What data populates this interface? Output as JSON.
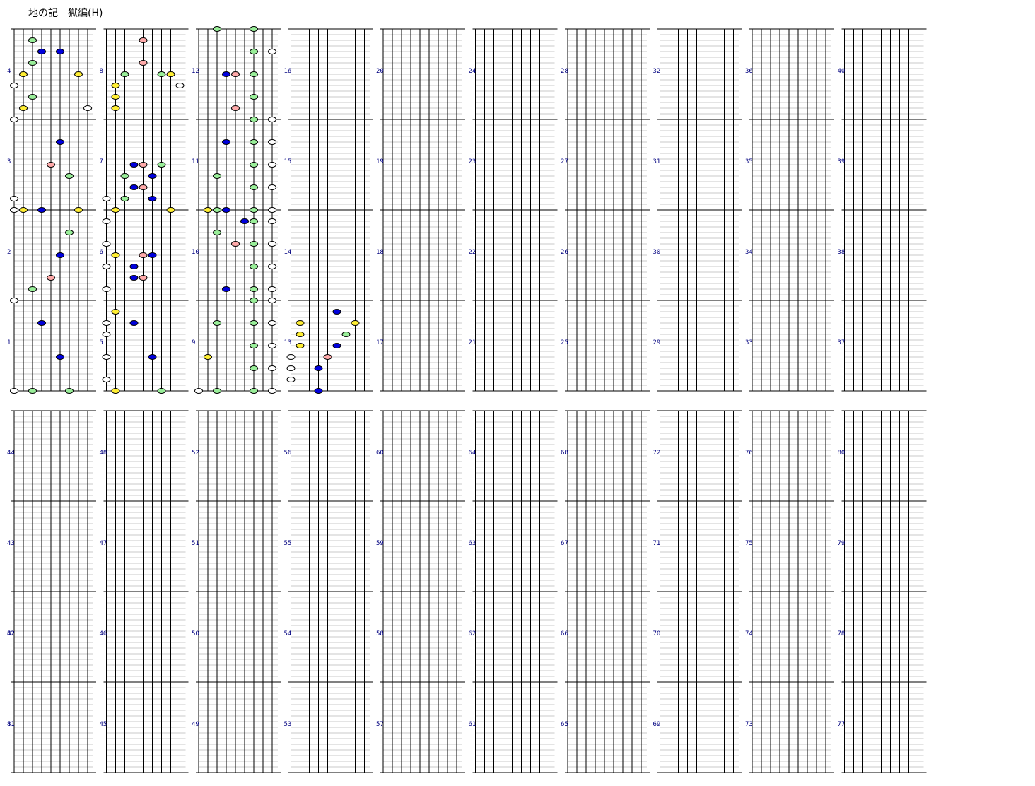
{
  "title": "地の記　獄編(H)",
  "chart_data": {
    "type": "rhythm-game-chart",
    "lanes": 9,
    "rows_per_measure": 16,
    "measures_per_column": 4,
    "total_measures": 82,
    "colors": {
      "white": "#ffffff",
      "yellow": "#ffee33",
      "green": "#99ee99",
      "blue": "#0000dd",
      "pink": "#ffaaaa"
    },
    "lane_colors": [
      "white",
      "yellow",
      "green",
      "blue",
      "pink",
      "blue",
      "green",
      "yellow",
      "white"
    ],
    "notes": {
      "1": [
        [
          0,
          0
        ],
        [
          2,
          0
        ],
        [
          3,
          6
        ],
        [
          5,
          3
        ],
        [
          6,
          0
        ]
      ],
      "2": [
        [
          0,
          0
        ],
        [
          2,
          1
        ],
        [
          3,
          8
        ],
        [
          4,
          2
        ],
        [
          5,
          4
        ],
        [
          6,
          6
        ]
      ],
      "3": [
        [
          0,
          0
        ],
        [
          0,
          1
        ],
        [
          1,
          0
        ],
        [
          4,
          4
        ],
        [
          5,
          6
        ],
        [
          6,
          3
        ],
        [
          7,
          0
        ]
      ],
      "4": [
        [
          0,
          0
        ],
        [
          0,
          3
        ],
        [
          1,
          1
        ],
        [
          1,
          4
        ],
        [
          2,
          2
        ],
        [
          2,
          5
        ],
        [
          2,
          7
        ],
        [
          3,
          6
        ],
        [
          5,
          6
        ],
        [
          7,
          4
        ],
        [
          8,
          1
        ]
      ],
      "5": [
        [
          0,
          1
        ],
        [
          0,
          3
        ],
        [
          0,
          5
        ],
        [
          0,
          6
        ],
        [
          1,
          0
        ],
        [
          1,
          7
        ],
        [
          3,
          6
        ],
        [
          5,
          3
        ],
        [
          6,
          0
        ]
      ],
      "6": [
        [
          0,
          1
        ],
        [
          0,
          3
        ],
        [
          0,
          5
        ],
        [
          0,
          7
        ],
        [
          1,
          4
        ],
        [
          3,
          2
        ],
        [
          3,
          3
        ],
        [
          4,
          2
        ],
        [
          4,
          4
        ],
        [
          5,
          4
        ]
      ],
      "7": [
        [
          0,
          1
        ],
        [
          1,
          0
        ],
        [
          2,
          1
        ],
        [
          2,
          3
        ],
        [
          3,
          4
        ],
        [
          3,
          2
        ],
        [
          4,
          2
        ],
        [
          4,
          4
        ],
        [
          5,
          3
        ],
        [
          5,
          1
        ],
        [
          6,
          4
        ],
        [
          7,
          0
        ]
      ],
      "8": [
        [
          1,
          1
        ],
        [
          1,
          2
        ],
        [
          1,
          3
        ],
        [
          2,
          4
        ],
        [
          4,
          5
        ],
        [
          4,
          7
        ],
        [
          6,
          4
        ],
        [
          7,
          4
        ],
        [
          8,
          3
        ]
      ],
      "9": [
        [
          0,
          0
        ],
        [
          1,
          3
        ],
        [
          2,
          0
        ],
        [
          2,
          6
        ],
        [
          6,
          0
        ],
        [
          6,
          2
        ],
        [
          6,
          4
        ],
        [
          6,
          6
        ],
        [
          6,
          8
        ],
        [
          8,
          0
        ],
        [
          8,
          2
        ],
        [
          8,
          4
        ],
        [
          8,
          6
        ],
        [
          8,
          8
        ]
      ],
      "10": [
        [
          2,
          6
        ],
        [
          3,
          1
        ],
        [
          4,
          5
        ],
        [
          5,
          7
        ],
        [
          6,
          1
        ],
        [
          6,
          3
        ],
        [
          6,
          5
        ],
        [
          6,
          7
        ],
        [
          8,
          1
        ],
        [
          8,
          3
        ],
        [
          8,
          5
        ],
        [
          8,
          7
        ]
      ],
      "11": [
        [
          1,
          0
        ],
        [
          2,
          0
        ],
        [
          2,
          3
        ],
        [
          3,
          0
        ],
        [
          3,
          6
        ],
        [
          6,
          0
        ],
        [
          6,
          2
        ],
        [
          6,
          4
        ],
        [
          6,
          6
        ],
        [
          6,
          8
        ],
        [
          8,
          0
        ],
        [
          8,
          2
        ],
        [
          8,
          4
        ],
        [
          8,
          6
        ],
        [
          8,
          8
        ]
      ],
      "12": [
        [
          2,
          8
        ],
        [
          3,
          4
        ],
        [
          4,
          1
        ],
        [
          4,
          4
        ],
        [
          6,
          0
        ],
        [
          6,
          2
        ],
        [
          6,
          4
        ],
        [
          6,
          6
        ],
        [
          6,
          8
        ],
        [
          8,
          0
        ],
        [
          8,
          6
        ]
      ],
      "13": [
        [
          0,
          1
        ],
        [
          0,
          2
        ],
        [
          0,
          3
        ],
        [
          1,
          4
        ],
        [
          1,
          5
        ],
        [
          1,
          6
        ],
        [
          3,
          0
        ],
        [
          3,
          2
        ],
        [
          4,
          3
        ],
        [
          5,
          4
        ],
        [
          5,
          7
        ],
        [
          6,
          5
        ],
        [
          7,
          6
        ]
      ]
    }
  }
}
